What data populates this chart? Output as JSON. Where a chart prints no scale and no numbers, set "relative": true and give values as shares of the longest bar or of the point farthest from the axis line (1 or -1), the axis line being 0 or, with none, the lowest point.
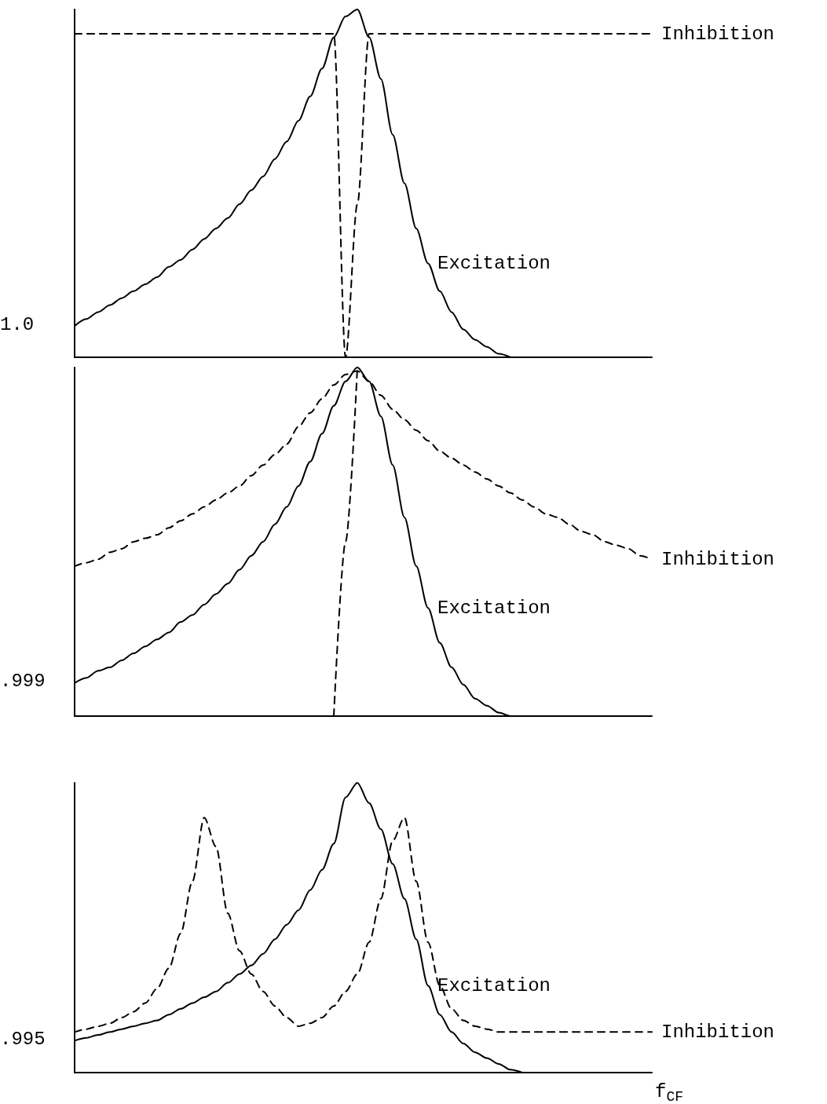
{
  "chart_data": [
    {
      "type": "line",
      "relative": true,
      "categories": [
        null,
        null,
        null,
        null,
        null,
        null,
        null,
        null,
        null,
        null,
        null,
        null,
        null,
        null,
        null,
        null,
        null,
        null,
        null,
        null,
        null,
        null,
        null,
        null,
        null,
        null,
        null,
        null,
        null,
        null,
        null,
        null,
        null,
        null,
        null,
        null,
        null,
        null,
        null,
        null,
        null,
        null,
        null,
        null,
        null,
        null,
        null,
        null,
        null,
        null
      ],
      "series": [
        {
          "name": "Excitation",
          "color": "#000000",
          "line_style": "solid",
          "values": [
            0.09,
            0.11,
            0.13,
            0.15,
            0.17,
            0.19,
            0.21,
            0.23,
            0.26,
            0.28,
            0.31,
            0.34,
            0.37,
            0.4,
            0.44,
            0.48,
            0.52,
            0.57,
            0.62,
            0.68,
            0.75,
            0.83,
            0.92,
            0.98,
            1.0,
            0.92,
            0.8,
            0.64,
            0.5,
            0.37,
            0.27,
            0.19,
            0.13,
            0.08,
            0.05,
            0.03,
            0.01,
            0,
            null,
            null,
            null,
            null,
            null,
            null,
            null,
            null,
            null,
            null,
            null,
            null
          ]
        },
        {
          "name": "Inhibition",
          "color": "#000000",
          "line_style": "dashed",
          "values": [
            0.93,
            0.93,
            0.93,
            0.93,
            0.93,
            0.93,
            0.93,
            0.93,
            0.93,
            0.93,
            0.93,
            0.93,
            0.93,
            0.93,
            0.93,
            0.93,
            0.93,
            0.93,
            0.93,
            0.93,
            0.93,
            0.93,
            0.93,
            0,
            0.44,
            0.93,
            0.93,
            0.93,
            0.93,
            0.93,
            0.93,
            0.93,
            0.93,
            0.93,
            0.93,
            0.93,
            0.93,
            0.93,
            0.93,
            0.93,
            0.93,
            0.93,
            0.93,
            0.93,
            0.93,
            0.93,
            0.93,
            0.93,
            0.93,
            0.93
          ]
        }
      ],
      "annotations": [
        "1.0"
      ]
    },
    {
      "type": "line",
      "relative": true,
      "categories": [
        null,
        null,
        null,
        null,
        null,
        null,
        null,
        null,
        null,
        null,
        null,
        null,
        null,
        null,
        null,
        null,
        null,
        null,
        null,
        null,
        null,
        null,
        null,
        null,
        null,
        null,
        null,
        null,
        null,
        null,
        null,
        null,
        null,
        null,
        null,
        null,
        null,
        null,
        null,
        null,
        null,
        null,
        null,
        null,
        null,
        null,
        null,
        null,
        null,
        null
      ],
      "series": [
        {
          "name": "Excitation",
          "color": "#000000",
          "line_style": "solid",
          "values": [
            0.095,
            0.11,
            0.13,
            0.14,
            0.16,
            0.18,
            0.2,
            0.22,
            0.24,
            0.27,
            0.29,
            0.32,
            0.35,
            0.38,
            0.42,
            0.46,
            0.5,
            0.55,
            0.6,
            0.66,
            0.73,
            0.81,
            0.89,
            0.96,
            1.0,
            0.96,
            0.86,
            0.72,
            0.57,
            0.43,
            0.31,
            0.21,
            0.14,
            0.09,
            0.05,
            0.03,
            0.01,
            0,
            0,
            null,
            null,
            null,
            null,
            null,
            null,
            null,
            null,
            null,
            null,
            null
          ]
        },
        {
          "name": "Inhibition",
          "color": "#000000",
          "line_style": "dashed",
          "values": [
            0.43,
            0.44,
            0.45,
            0.47,
            0.48,
            0.5,
            0.51,
            0.52,
            0.54,
            0.56,
            0.58,
            0.6,
            0.62,
            0.64,
            0.66,
            0.69,
            0.72,
            0.75,
            0.78,
            0.83,
            0.87,
            0.91,
            0.95,
            0.98,
            0.99,
            0.96,
            0.92,
            0.88,
            0.85,
            0.82,
            0.79,
            0.76,
            0.74,
            0.72,
            0.7,
            0.68,
            0.66,
            0.64,
            0.62,
            0.6,
            0.58,
            0.57,
            0.55,
            0.53,
            0.52,
            0.5,
            0.49,
            0.48,
            0.46,
            0.45
          ]
        },
        {
          "color": "#000000",
          "line_style": "dashed",
          "values": [
            null,
            null,
            null,
            null,
            null,
            null,
            null,
            null,
            null,
            null,
            null,
            null,
            null,
            null,
            null,
            null,
            null,
            null,
            null,
            null,
            null,
            null,
            0,
            0.5,
            1.0,
            null,
            null,
            null,
            null,
            null,
            null,
            null,
            null,
            null,
            null,
            null,
            null,
            null,
            null,
            null,
            null,
            null,
            null,
            null,
            null,
            null,
            null,
            null,
            null,
            null
          ]
        }
      ],
      "annotations": [
        ".999"
      ]
    },
    {
      "type": "line",
      "relative": true,
      "xlabel": "f$_{CF}$",
      "categories": [
        null,
        null,
        null,
        null,
        null,
        null,
        null,
        null,
        null,
        null,
        null,
        null,
        null,
        null,
        null,
        null,
        null,
        null,
        null,
        null,
        null,
        null,
        null,
        null,
        null,
        null,
        null,
        null,
        null,
        null,
        null,
        null,
        null,
        null,
        null,
        null,
        null,
        null,
        null,
        null,
        null,
        null,
        null,
        null,
        null,
        null,
        null,
        null,
        null,
        null
      ],
      "series": [
        {
          "name": "Excitation",
          "color": "#000000",
          "line_style": "solid",
          "values": [
            0.11,
            0.12,
            0.13,
            0.14,
            0.15,
            0.16,
            0.17,
            0.18,
            0.2,
            0.22,
            0.24,
            0.26,
            0.28,
            0.31,
            0.34,
            0.37,
            0.41,
            0.46,
            0.51,
            0.56,
            0.63,
            0.7,
            0.79,
            0.95,
            1.0,
            0.93,
            0.84,
            0.72,
            0.6,
            0.46,
            0.3,
            0.2,
            0.14,
            0.1,
            0.07,
            0.05,
            0.03,
            0.01,
            0,
            null,
            null,
            null,
            null,
            null,
            null,
            null,
            null,
            null,
            null,
            null
          ]
        },
        {
          "name": "Inhibition",
          "color": "#000000",
          "line_style": "dashed",
          "values": [
            0.14,
            0.15,
            0.16,
            0.17,
            0.19,
            0.21,
            0.24,
            0.29,
            0.36,
            0.48,
            0.66,
            0.88,
            0.78,
            0.55,
            0.42,
            0.34,
            0.28,
            0.23,
            0.19,
            0.16,
            0.17,
            0.19,
            0.23,
            0.28,
            0.34,
            0.45,
            0.6,
            0.8,
            0.88,
            0.66,
            0.45,
            0.3,
            0.22,
            0.18,
            0.16,
            0.15,
            0.14,
            0.14,
            0.14,
            0.14,
            0.14,
            0.14,
            0.14,
            0.14,
            0.14,
            0.14,
            0.14,
            0.14,
            0.14,
            0.14
          ]
        }
      ],
      "annotations": [
        ".995"
      ]
    }
  ]
}
